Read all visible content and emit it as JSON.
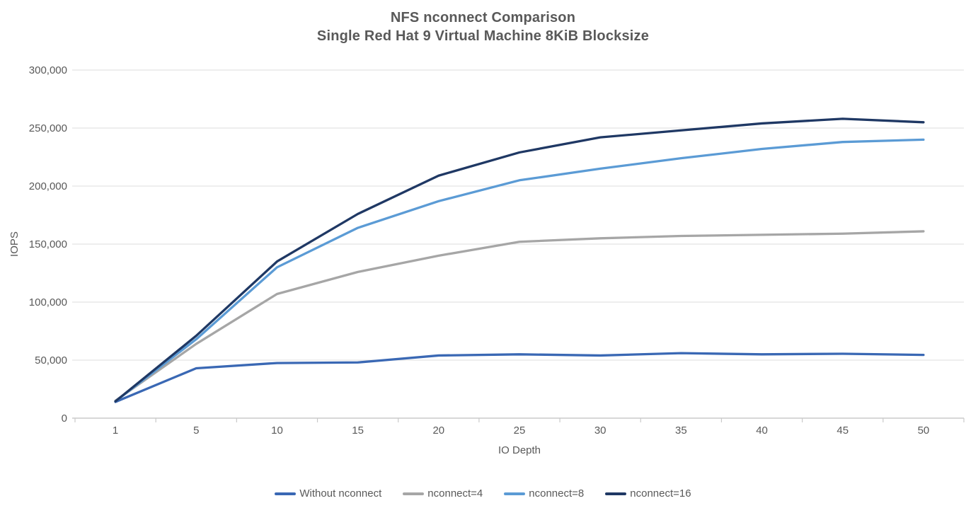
{
  "title": {
    "line1": "NFS nconnect Comparison",
    "line2": "Single Red Hat 9 Virtual Machine 8KiB Blocksize"
  },
  "chart_data": {
    "type": "line",
    "title": "NFS nconnect Comparison",
    "subtitle": "Single Red Hat 9 Virtual Machine 8KiB Blocksize",
    "xlabel": "IO Depth",
    "ylabel": "IOPS",
    "categories": [
      "1",
      "5",
      "10",
      "15",
      "20",
      "25",
      "30",
      "35",
      "40",
      "45",
      "50"
    ],
    "ylim": [
      0,
      300000
    ],
    "ytick_step": 50000,
    "ytick_labels": [
      "0",
      "50,000",
      "100,000",
      "150,000",
      "200,000",
      "250,000",
      "300,000"
    ],
    "grid": true,
    "legend_position": "bottom",
    "series": [
      {
        "name": "Without nconnect",
        "color": "#3A68B4",
        "values": [
          14000,
          43000,
          47500,
          48000,
          54000,
          55000,
          54000,
          56000,
          55000,
          55500,
          54500
        ]
      },
      {
        "name": "nconnect=4",
        "color": "#A6A6A6",
        "values": [
          15000,
          64000,
          107000,
          126000,
          140000,
          152000,
          155000,
          157000,
          158000,
          159000,
          161000
        ]
      },
      {
        "name": "nconnect=8",
        "color": "#5B9BD5",
        "values": [
          14500,
          68000,
          130000,
          164000,
          187000,
          205000,
          215000,
          224000,
          232000,
          238000,
          240000
        ]
      },
      {
        "name": "nconnect=16",
        "color": "#1F3864",
        "values": [
          14500,
          71000,
          135000,
          176000,
          209000,
          229000,
          242000,
          248000,
          254000,
          258000,
          255000
        ]
      }
    ],
    "style": {
      "gridline_color": "#E4E4E4",
      "axis_line_color": "#BFBFBF",
      "tick_mark_color": "#C9C9C9",
      "label_color": "#595959",
      "title_color": "#595959"
    }
  }
}
